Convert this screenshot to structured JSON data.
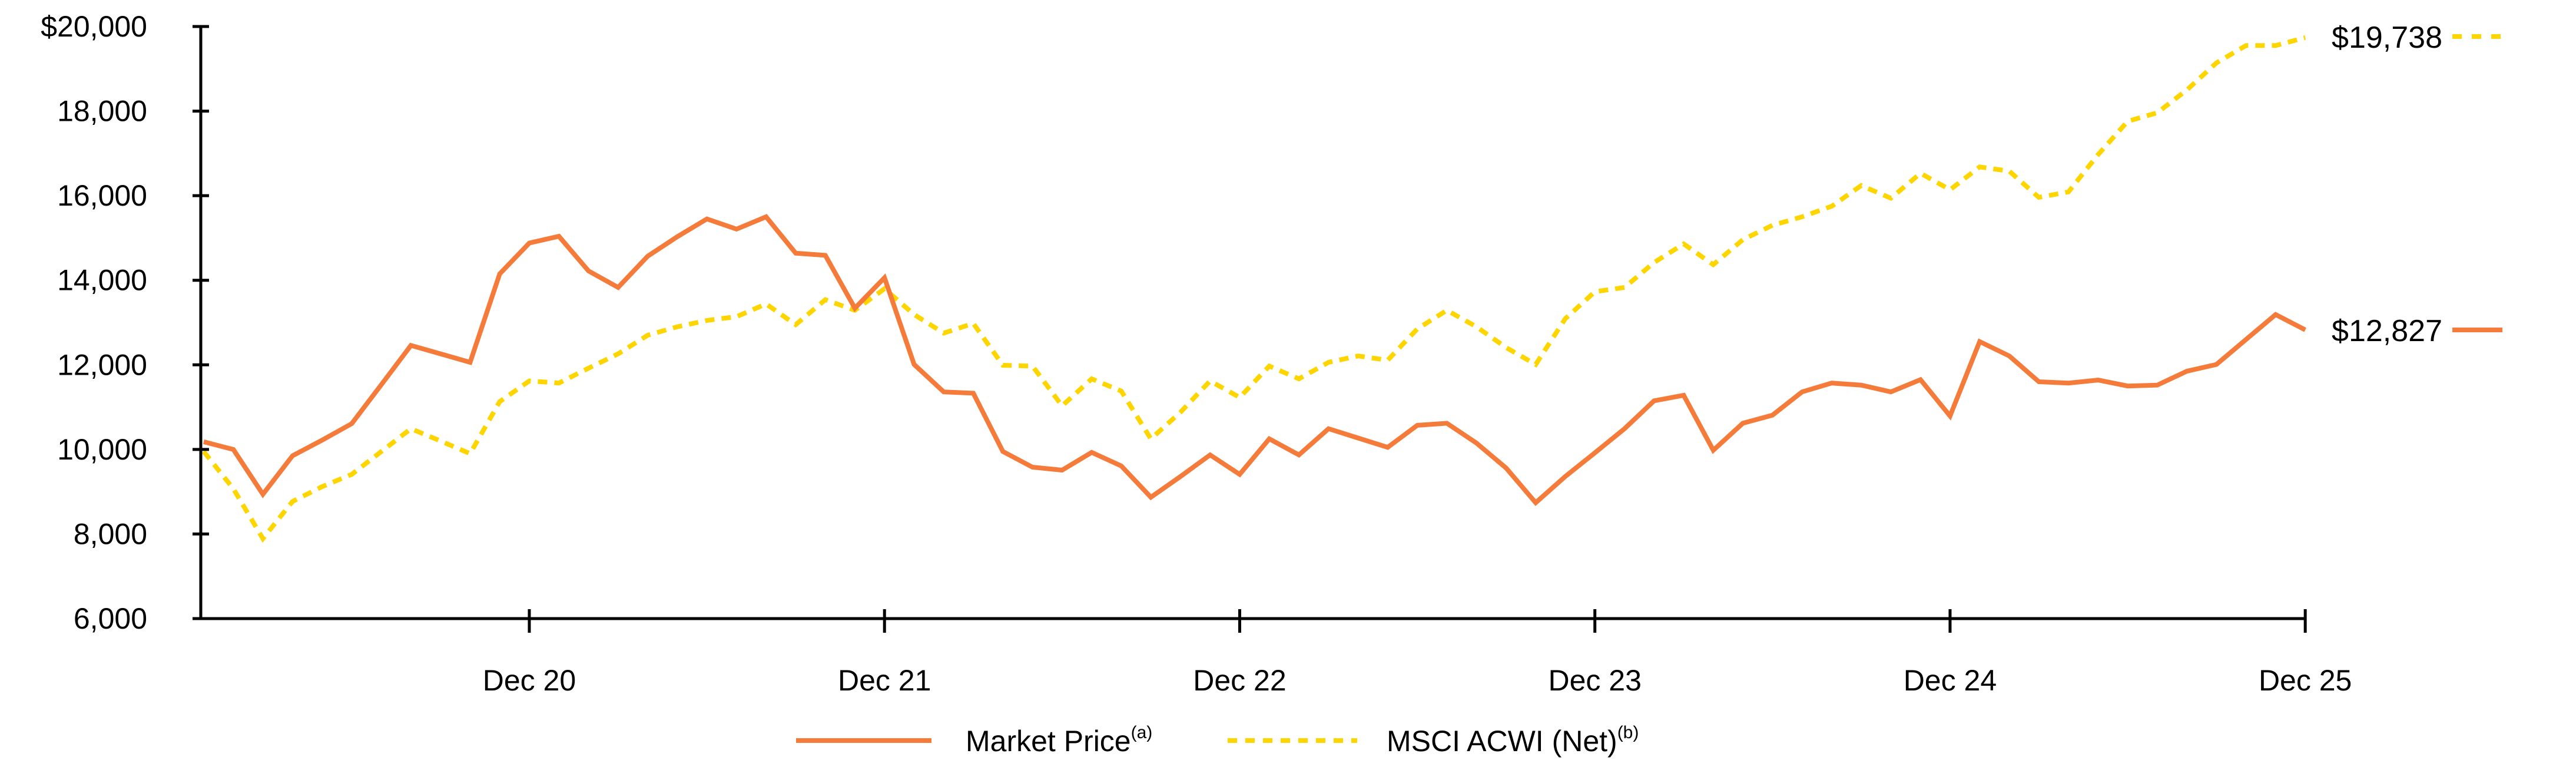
{
  "chart_data": {
    "type": "line",
    "title": "",
    "xlabel": "",
    "ylabel": "",
    "ylim": [
      6000,
      20000
    ],
    "yticks": [
      6000,
      8000,
      10000,
      12000,
      14000,
      16000,
      18000,
      20000
    ],
    "ytick_labels": [
      "6,000",
      "8,000",
      "10,000",
      "12,000",
      "14,000",
      "16,000",
      "18,000",
      "$20,000"
    ],
    "x_period": "monthly, Jan 2020 to Dec 2025 (72 points)",
    "xticks_month_index": [
      11,
      23,
      35,
      47,
      59,
      71
    ],
    "xtick_labels": [
      "Dec 20",
      "Dec 21",
      "Dec 22",
      "Dec 23",
      "Dec 24",
      "Dec 25"
    ],
    "grid": false,
    "legend_position": "bottom-center",
    "series": [
      {
        "name": "Market Price",
        "superscript": "(a)",
        "color": "#F47B3A",
        "style": "solid",
        "end_label": "$12,827",
        "values": [
          10180,
          10000,
          8940,
          9850,
          10220,
          10610,
          11530,
          12460,
          12260,
          12060,
          14150,
          14880,
          15040,
          14220,
          13830,
          14570,
          15030,
          15450,
          15210,
          15500,
          14640,
          14590,
          13340,
          14060,
          12010,
          11360,
          11330,
          9950,
          9580,
          9510,
          9930,
          9610,
          8870,
          9360,
          9870,
          9410,
          10250,
          9870,
          10490,
          10270,
          10050,
          10570,
          10620,
          10150,
          9560,
          8740,
          9360,
          9920,
          10490,
          11150,
          11280,
          9980,
          10620,
          10810,
          11360,
          11570,
          11520,
          11360,
          11650,
          10790,
          12550,
          12210,
          11600,
          11570,
          11640,
          11500,
          11520,
          11850,
          12010,
          12600,
          13190,
          12827
        ]
      },
      {
        "name": "MSCI ACWI (Net)",
        "superscript": "(b)",
        "color": "#FFD500",
        "style": "dashed",
        "end_label": "$19,738",
        "values": [
          9950,
          9070,
          7890,
          8770,
          9120,
          9410,
          9950,
          10490,
          10200,
          9900,
          11130,
          11620,
          11570,
          11920,
          12260,
          12700,
          12900,
          13050,
          13140,
          13440,
          12950,
          13540,
          13290,
          13800,
          13190,
          12750,
          12980,
          11990,
          11970,
          11030,
          11670,
          11380,
          10250,
          10880,
          11620,
          11230,
          11970,
          11670,
          12060,
          12210,
          12110,
          12850,
          13290,
          12900,
          12410,
          12010,
          13090,
          13730,
          13830,
          14420,
          14860,
          14370,
          14960,
          15300,
          15500,
          15750,
          16240,
          15940,
          16530,
          16140,
          16680,
          16580,
          15960,
          16090,
          16970,
          17760,
          17960,
          18500,
          19140,
          19550,
          19550,
          19738
        ]
      }
    ]
  }
}
